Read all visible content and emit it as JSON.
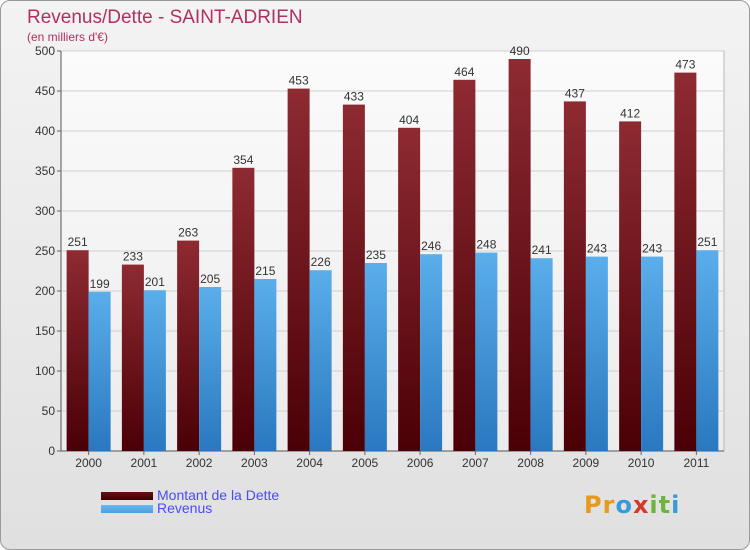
{
  "colors": {
    "dette": "#6b0f16",
    "revenus": "#4b9fe0",
    "title": "#b03060",
    "legend_text": "#4a4aff"
  },
  "logo": {
    "text": "Proxiti",
    "letters": [
      "P",
      "r",
      "o",
      "x",
      "i",
      "t",
      "i"
    ],
    "colors": [
      "#e69a1f",
      "#e69a1f",
      "#3a9ad9",
      "#d13b2e",
      "#6fb33c",
      "#6fb33c",
      "#3a9ad9"
    ]
  },
  "chart_data": {
    "type": "bar",
    "title": "Revenus/Dette - SAINT-ADRIEN",
    "subtitle": "(en milliers d'€)",
    "xlabel": "",
    "ylabel": "",
    "ylim": [
      0,
      500
    ],
    "yticks": [
      0,
      50,
      100,
      150,
      200,
      250,
      300,
      350,
      400,
      450,
      500
    ],
    "grid": true,
    "legend_position": "bottom-left",
    "categories": [
      "2000",
      "2001",
      "2002",
      "2003",
      "2004",
      "2005",
      "2006",
      "2007",
      "2008",
      "2009",
      "2010",
      "2011"
    ],
    "series": [
      {
        "name": "Montant de la Dette",
        "values": [
          251,
          233,
          263,
          354,
          453,
          433,
          404,
          464,
          490,
          437,
          412,
          473
        ]
      },
      {
        "name": "Revenus",
        "values": [
          199,
          201,
          205,
          215,
          226,
          235,
          246,
          248,
          241,
          243,
          243,
          251
        ]
      }
    ]
  }
}
